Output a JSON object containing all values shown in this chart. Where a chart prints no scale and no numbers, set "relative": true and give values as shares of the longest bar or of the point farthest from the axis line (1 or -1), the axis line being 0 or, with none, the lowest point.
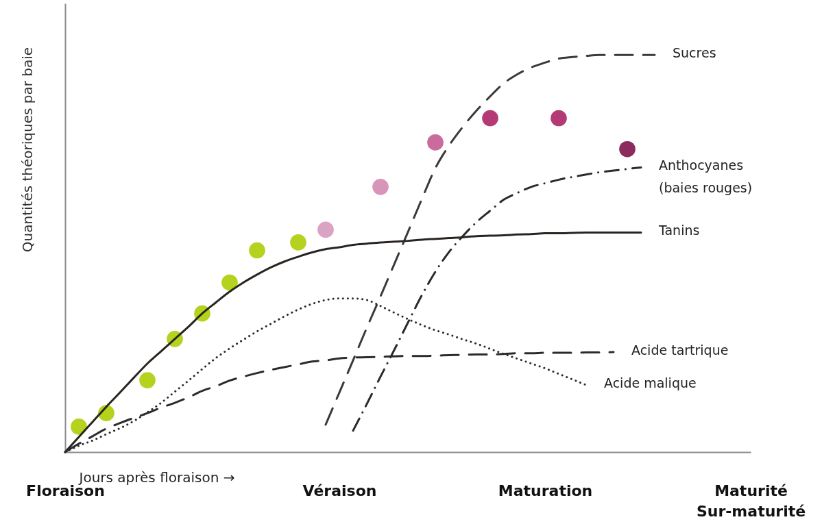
{
  "chart_data": {
    "type": "line",
    "relative": true,
    "xlabel": "Jours après floraison →",
    "ylabel": "Quantités théoriques par baie",
    "categories": [
      "Floraison",
      null,
      null,
      null,
      null,
      null,
      null,
      null,
      null,
      null,
      null,
      null,
      null,
      null,
      null,
      null,
      null,
      null,
      null,
      null,
      "Véraison",
      null,
      null,
      null,
      null,
      null,
      null,
      null,
      null,
      null,
      null,
      null,
      null,
      null,
      null,
      "Maturation",
      null,
      null,
      null,
      null,
      null,
      null,
      null,
      null,
      null,
      null,
      null,
      null,
      null,
      null,
      "Maturité\nSur-maturité"
    ],
    "series": [
      {
        "type": "scatter",
        "marker": "circle",
        "colors": [
          null,
          "#b4d21e",
          null,
          "#b4d21e",
          null,
          null,
          "#b4d21e",
          null,
          "#b4d21e",
          null,
          "#b4d21e",
          null,
          "#b4d21e",
          null,
          "#b4d21e",
          null,
          null,
          "#b4d21e",
          null,
          "#dba3c3",
          null,
          null,
          null,
          "#d795b9",
          null,
          null,
          null,
          "#c96b9d",
          null,
          null,
          null,
          "#b33a74",
          null,
          null,
          null,
          null,
          "#b33a74",
          null,
          null,
          null,
          null,
          "#8c2b5c",
          null,
          null,
          null,
          null,
          null,
          null,
          null,
          null,
          null
        ],
        "values": [
          null,
          0.064,
          null,
          0.098,
          null,
          null,
          0.181,
          null,
          0.285,
          null,
          0.349,
          null,
          0.427,
          null,
          0.508,
          null,
          null,
          0.528,
          null,
          0.56,
          null,
          null,
          null,
          0.668,
          null,
          null,
          null,
          0.78,
          null,
          null,
          null,
          0.841,
          null,
          null,
          null,
          null,
          0.841,
          null,
          null,
          null,
          null,
          0.763,
          null,
          null,
          null,
          null,
          null,
          null,
          null,
          null,
          null
        ]
      },
      {
        "name": "Sucres",
        "color": "#3c3a38",
        "line_style": "dashed",
        "values": [
          null,
          null,
          null,
          null,
          null,
          null,
          null,
          null,
          null,
          null,
          null,
          null,
          null,
          null,
          null,
          null,
          null,
          null,
          null,
          0.069,
          0.15,
          0.231,
          0.313,
          0.392,
          0.473,
          0.554,
          0.636,
          0.715,
          0.772,
          0.819,
          0.86,
          0.896,
          0.929,
          0.952,
          0.969,
          0.981,
          0.991,
          0.995,
          0.998,
          1.0,
          1.0,
          1.0,
          1.0,
          1.0,
          null,
          null,
          null,
          null,
          null,
          null,
          null
        ]
      },
      {
        "name": "Anthocyanes\n(baies rouges)",
        "color": "#2b2b2b",
        "line_style": "dashdot",
        "values": [
          null,
          null,
          null,
          null,
          null,
          null,
          null,
          null,
          null,
          null,
          null,
          null,
          null,
          null,
          null,
          null,
          null,
          null,
          null,
          null,
          null,
          0.054,
          0.121,
          0.19,
          0.257,
          0.326,
          0.394,
          0.454,
          0.504,
          0.544,
          0.579,
          0.608,
          0.636,
          0.653,
          0.668,
          0.677,
          0.686,
          0.693,
          0.699,
          0.705,
          0.709,
          0.713,
          0.717,
          null,
          null,
          null,
          null,
          null,
          null,
          null,
          null
        ]
      },
      {
        "name": "Tanins",
        "color": "#2a2420",
        "line_style": "solid",
        "values": [
          0,
          0.038,
          0.076,
          0.114,
          0.15,
          0.187,
          0.223,
          0.254,
          0.285,
          0.316,
          0.349,
          0.377,
          0.404,
          0.427,
          0.447,
          0.465,
          0.48,
          0.492,
          0.503,
          0.511,
          0.516,
          0.522,
          0.525,
          0.528,
          0.53,
          0.532,
          0.535,
          0.537,
          0.539,
          0.541,
          0.544,
          0.545,
          0.546,
          0.548,
          0.549,
          0.551,
          0.551,
          0.552,
          0.553,
          0.553,
          0.553,
          0.553,
          0.553,
          null,
          null,
          null,
          null,
          null,
          null,
          null,
          null
        ]
      },
      {
        "name": "Acide tartrique",
        "color": "#2b2b2b",
        "line_style": "dashed",
        "values": [
          0,
          0.021,
          0.04,
          0.059,
          0.073,
          0.086,
          0.098,
          0.112,
          0.124,
          0.138,
          0.154,
          0.166,
          0.18,
          0.19,
          0.199,
          0.207,
          0.214,
          0.221,
          0.228,
          0.231,
          0.236,
          0.238,
          0.239,
          0.24,
          0.241,
          0.242,
          0.242,
          0.243,
          0.244,
          0.245,
          0.246,
          0.246,
          0.247,
          0.249,
          0.249,
          0.25,
          0.25,
          0.25,
          0.251,
          0.251,
          0.252,
          null,
          null,
          null,
          null,
          null,
          null,
          null,
          null,
          null,
          null
        ]
      },
      {
        "name": "Acide malique",
        "color": "#2b2b2b",
        "line_style": "dotted",
        "values": [
          0,
          0.016,
          0.029,
          0.045,
          0.06,
          0.078,
          0.1,
          0.124,
          0.152,
          0.18,
          0.209,
          0.237,
          0.261,
          0.283,
          0.304,
          0.323,
          0.342,
          0.359,
          0.373,
          0.383,
          0.387,
          0.387,
          0.383,
          0.368,
          0.351,
          0.335,
          0.32,
          0.307,
          0.296,
          0.284,
          0.273,
          0.26,
          0.247,
          0.235,
          0.223,
          0.211,
          0.197,
          0.183,
          0.169,
          null,
          null,
          null,
          null,
          null,
          null,
          null,
          null,
          null,
          null,
          null,
          null
        ]
      }
    ]
  }
}
